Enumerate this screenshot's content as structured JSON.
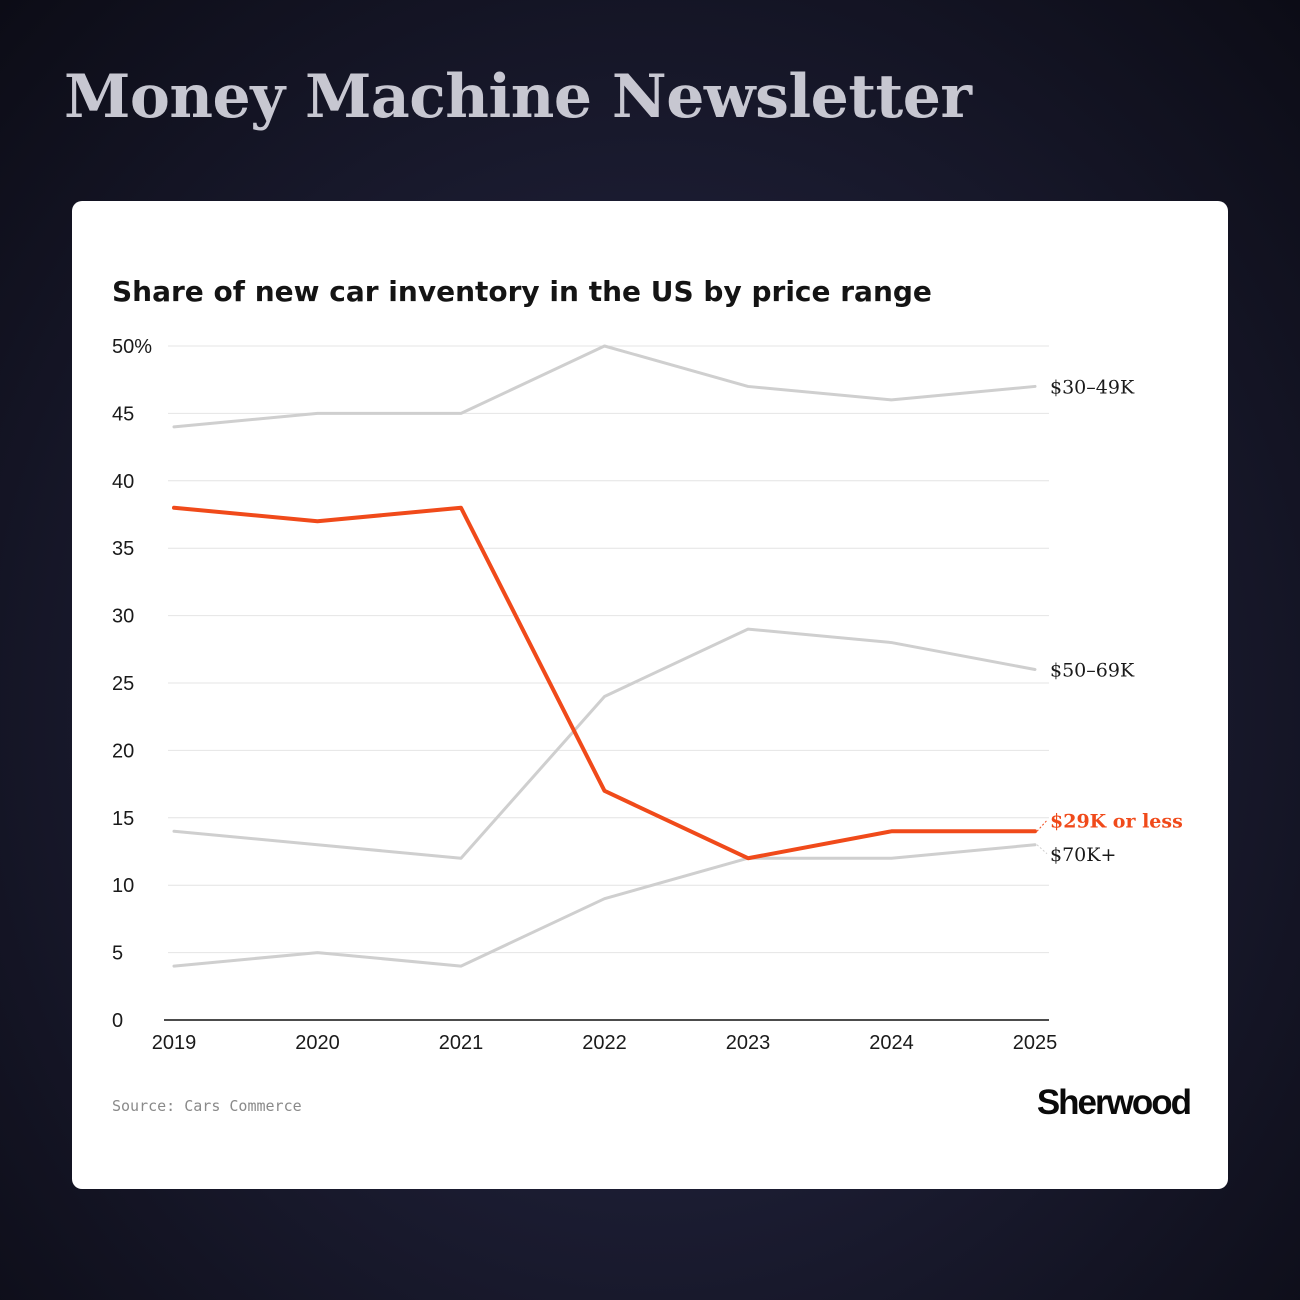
{
  "header": {
    "title": "Money Machine Newsletter"
  },
  "footer": {
    "source": "Source: Cars Commerce",
    "brand": "Sherwood"
  },
  "colors": {
    "highlight": "#f04a1a",
    "muted_line": "#cfcfcf",
    "grid": "#e4e4e4",
    "axis": "#111111"
  },
  "chart_data": {
    "type": "line",
    "title": "Share of new car inventory in the US by price range",
    "xlabel": "",
    "ylabel": "",
    "x": [
      2019,
      2020,
      2021,
      2022,
      2023,
      2024,
      2025
    ],
    "ylim": [
      0,
      50
    ],
    "yticks": [
      0,
      5,
      10,
      15,
      20,
      25,
      30,
      35,
      40,
      45,
      50
    ],
    "ytick_labels": [
      "0",
      "5",
      "10",
      "15",
      "20",
      "25",
      "30",
      "35",
      "40",
      "45",
      "50%"
    ],
    "grid": true,
    "legend": "direct labels at right end of lines",
    "series": [
      {
        "name": "$30–49K",
        "values": [
          44,
          45,
          45,
          50,
          47,
          46,
          47
        ],
        "color": "#cfcfcf",
        "highlight": false
      },
      {
        "name": "$50–69K",
        "values": [
          14,
          13,
          12,
          24,
          29,
          28,
          26
        ],
        "color": "#cfcfcf",
        "highlight": false
      },
      {
        "name": "$70K+",
        "values": [
          4,
          5,
          4,
          9,
          12,
          12,
          13
        ],
        "color": "#cfcfcf",
        "highlight": false
      },
      {
        "name": "$29K or less",
        "values": [
          38,
          37,
          38,
          17,
          12,
          14,
          14
        ],
        "color": "#f04a1a",
        "highlight": true
      }
    ]
  }
}
